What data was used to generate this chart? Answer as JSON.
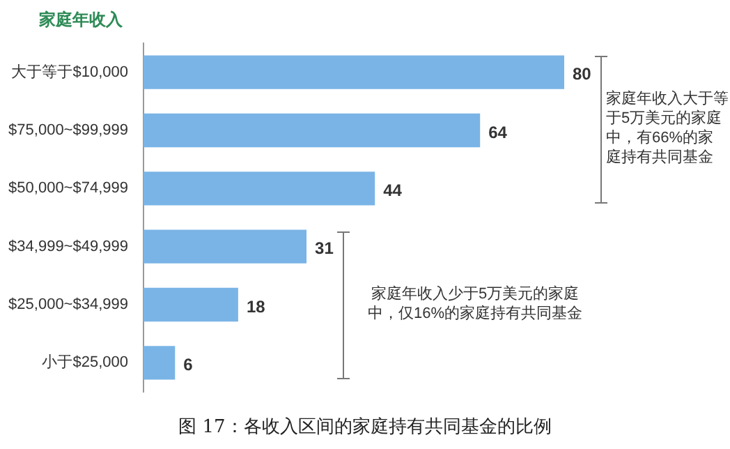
{
  "chart_data": {
    "type": "bar",
    "orientation": "horizontal",
    "ylabel": "家庭年收入",
    "categories": [
      "大于等于$10,000",
      "$75,000~$99,999",
      "$50,000~$74,999",
      "$34,999~$49,999",
      "$25,000~$34,999",
      "小于$25,000"
    ],
    "values": [
      80,
      64,
      44,
      31,
      18,
      6
    ],
    "color": "#7ab4e6",
    "data_labels": true,
    "grid": false,
    "legend": false,
    "annotations": [
      "家庭年收入大于等于5万美元的家庭中，有66%的家庭持有共同基金",
      "家庭年收入少于5万美元的家庭中，仅16%的家庭持有共同基金",
      "图 17：各收入区间的家庭持有共同基金的比例"
    ]
  }
}
